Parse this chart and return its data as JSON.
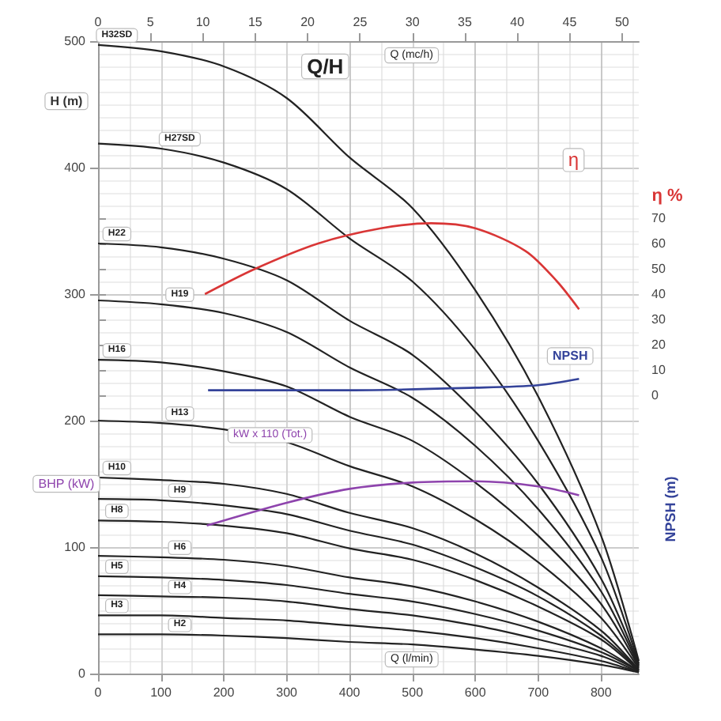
{
  "chart_data": {
    "type": "line",
    "title": "Q/H",
    "xlabel": "Q (l/min)",
    "x2label": "Q (mc/h)",
    "ylabel": "H (m)",
    "y2label": "η %",
    "annotations": [
      "BHP (kW)",
      "NPSH (m)"
    ],
    "x": [
      0,
      100,
      200,
      300,
      400,
      500,
      600,
      700,
      800,
      860
    ],
    "xlim": [
      0,
      860
    ],
    "xticks": [
      0,
      100,
      200,
      300,
      400,
      500,
      600,
      700,
      800
    ],
    "x2lim": [
      0,
      51.6
    ],
    "x2ticks": [
      0,
      5,
      10,
      15,
      20,
      25,
      30,
      35,
      40,
      45,
      50
    ],
    "ylim": [
      0,
      500
    ],
    "yticks": [
      0,
      100,
      200,
      300,
      400,
      500
    ],
    "y2lim": [
      -110,
      140
    ],
    "y2ticks": [
      0,
      10,
      20,
      30,
      40,
      50,
      60,
      70
    ],
    "grid": true,
    "legend": false,
    "marker": "none",
    "series": [
      {
        "name": "H32SD",
        "color": "#222222",
        "values": [
          497,
          492,
          480,
          455,
          408,
          368,
          303,
          219,
          109,
          10
        ]
      },
      {
        "name": "H27SD",
        "color": "#222222",
        "values": [
          419,
          415,
          404,
          383,
          344,
          310,
          256,
          184,
          92,
          8
        ]
      },
      {
        "name": "H22",
        "color": "#222222",
        "values": [
          340,
          337,
          328,
          311,
          279,
          252,
          207,
          150,
          75,
          7
        ]
      },
      {
        "name": "H19",
        "color": "#222222",
        "values": [
          295,
          292,
          285,
          270,
          242,
          218,
          180,
          130,
          65,
          6
        ]
      },
      {
        "name": "H16",
        "color": "#222222",
        "values": [
          248,
          246,
          239,
          227,
          203,
          184,
          151,
          109,
          55,
          5
        ]
      },
      {
        "name": "H13",
        "color": "#222222",
        "values": [
          200,
          198,
          193,
          183,
          164,
          148,
          122,
          88,
          44,
          4
        ]
      },
      {
        "name": "H10",
        "color": "#222222",
        "values": [
          155,
          153,
          150,
          142,
          127,
          115,
          95,
          68,
          34,
          3
        ]
      },
      {
        "name": "H9",
        "color": "#222222",
        "values": [
          138,
          137,
          133,
          126,
          113,
          102,
          84,
          61,
          30,
          3
        ]
      },
      {
        "name": "H8",
        "color": "#222222",
        "values": [
          121,
          120,
          117,
          111,
          99,
          90,
          74,
          53,
          27,
          2
        ]
      },
      {
        "name": "H6",
        "color": "#222222",
        "values": [
          93,
          92,
          90,
          85,
          76,
          69,
          57,
          41,
          20,
          2
        ]
      },
      {
        "name": "H5",
        "color": "#222222",
        "values": [
          77,
          76,
          74,
          70,
          63,
          57,
          47,
          34,
          17,
          2
        ]
      },
      {
        "name": "H4",
        "color": "#222222",
        "values": [
          62,
          61,
          60,
          57,
          51,
          46,
          38,
          27,
          14,
          1
        ]
      },
      {
        "name": "H3",
        "color": "#222222",
        "values": [
          46,
          46,
          44,
          42,
          38,
          34,
          28,
          20,
          10,
          1
        ]
      },
      {
        "name": "H2",
        "color": "#222222",
        "values": [
          31,
          31,
          30,
          28,
          25,
          23,
          19,
          14,
          7,
          1
        ]
      },
      {
        "name": "kW x 110 (Tot.)",
        "color": "#8e44ad",
        "x": [
          173,
          300,
          400,
          500,
          600,
          700,
          765
        ],
        "values": [
          117,
          135,
          146,
          151,
          152,
          148,
          141
        ]
      },
      {
        "name": "η",
        "color": "#d93636",
        "axis": "y2",
        "x": [
          170,
          250,
          350,
          450,
          530,
          600,
          680,
          730,
          765
        ],
        "values": [
          40,
          50,
          60,
          66,
          68,
          66,
          57,
          45,
          34
        ]
      },
      {
        "name": "NPSH",
        "color": "#34439a",
        "axis": "y2",
        "x": [
          175,
          400,
          600,
          700,
          765
        ],
        "values": [
          2,
          2,
          3,
          4,
          6.5
        ]
      }
    ]
  }
}
